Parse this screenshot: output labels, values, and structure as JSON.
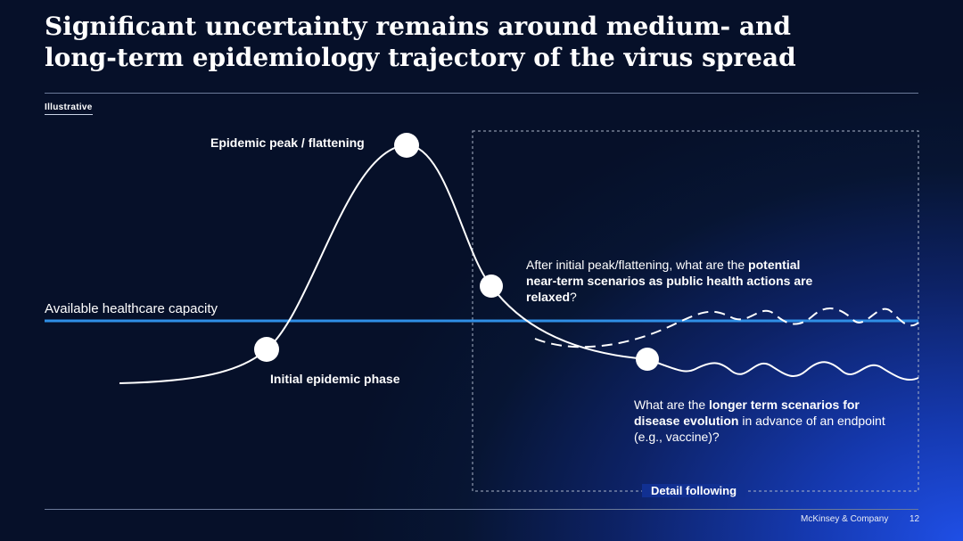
{
  "slide": {
    "title_line1": "Significant uncertainty remains around medium- and",
    "title_line2": "long-term epidemiology trajectory of the virus spread",
    "tag": "Illustrative"
  },
  "diagram": {
    "capacity_label": "Available healthcare capacity",
    "peak_label": "Epidemic peak / flattening",
    "initial_label": "Initial epidemic phase",
    "near_term_question": {
      "part1": "After initial peak/flattening, what are the ",
      "part2_bold": "potential near-term scenarios as public health actions are relaxed",
      "part3": "?"
    },
    "long_term_question": {
      "part1": "What are the ",
      "part2_bold": "longer term scenarios for disease evolution",
      "part3": " in advance of an endpoint (e.g., vaccine)?"
    },
    "detail_label": "Detail following",
    "colors": {
      "capacity_line": "#2f8fe6",
      "curve": "#ffffff",
      "markers": "#ffffff"
    }
  },
  "footer": {
    "company": "McKinsey & Company",
    "page": "12"
  }
}
